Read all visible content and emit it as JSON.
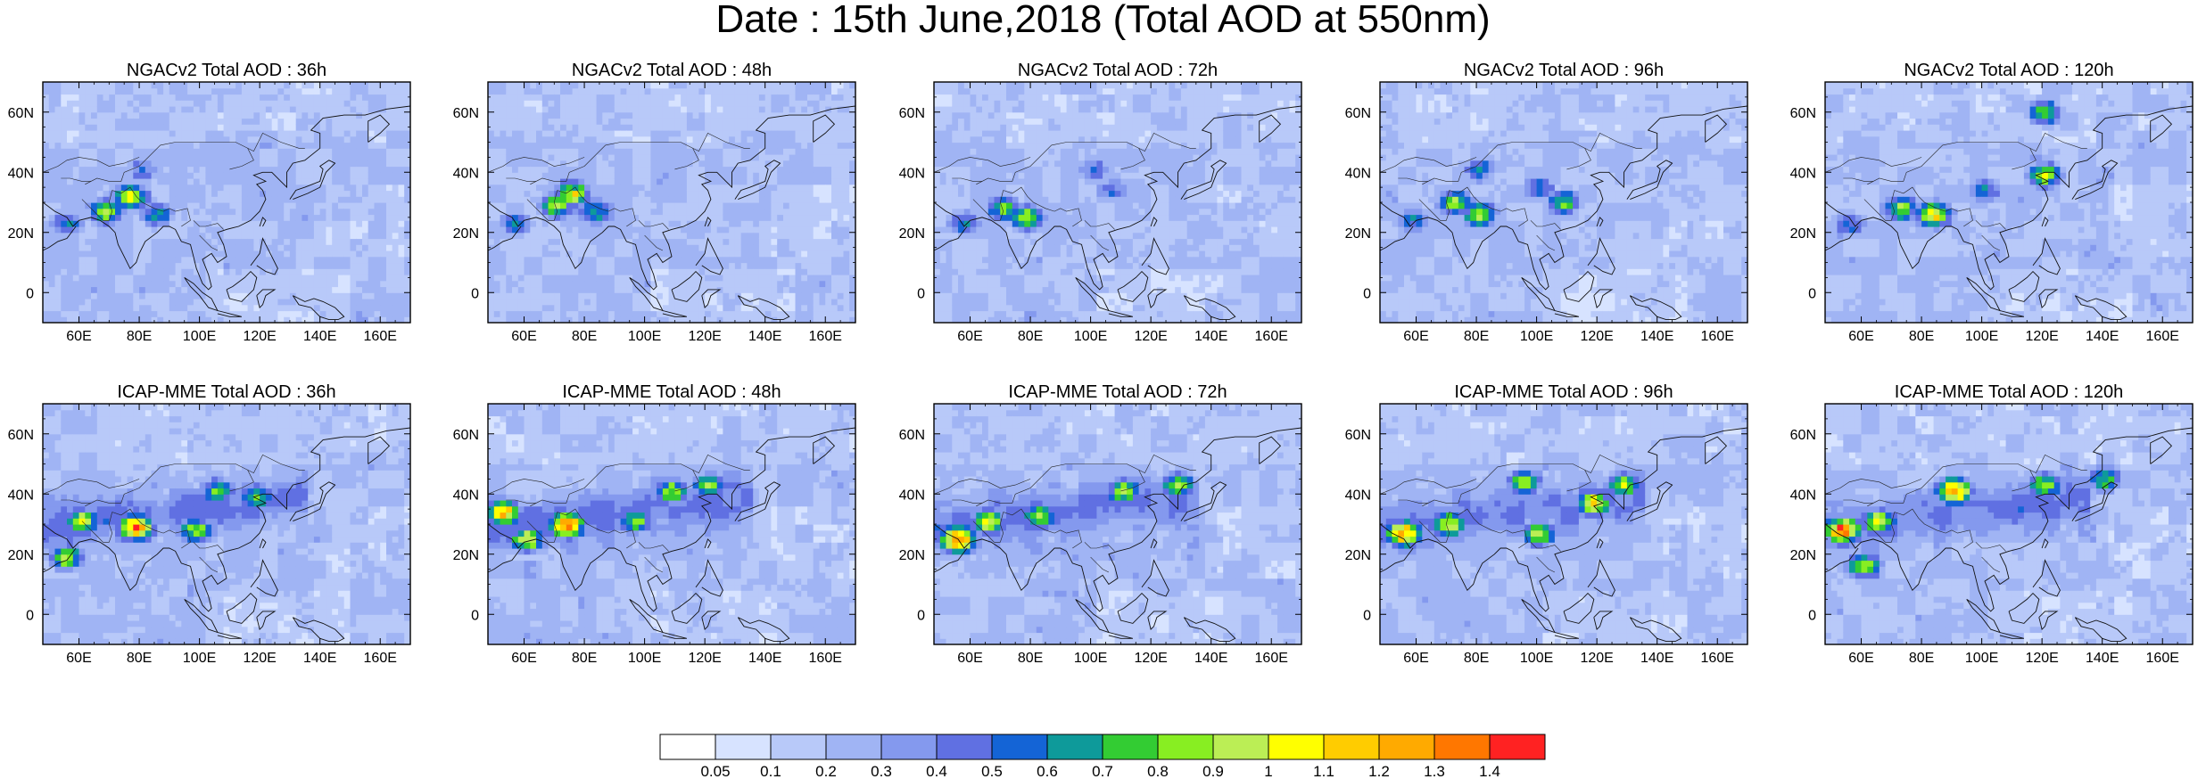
{
  "title": "Date : 15th June,2018 (Total AOD at 550nm)",
  "chart_data": {
    "type": "heatmap",
    "title": "Date : 15th June,2018 (Total AOD at 550nm)",
    "xlim": [
      48,
      170
    ],
    "ylim": [
      -10,
      70
    ],
    "x_ticks": [
      60,
      80,
      100,
      120,
      140,
      160
    ],
    "x_tick_labels": [
      "60E",
      "80E",
      "100E",
      "120E",
      "140E",
      "160E"
    ],
    "y_ticks": [
      0,
      20,
      40,
      60
    ],
    "y_tick_labels": [
      "0",
      "20N",
      "40N",
      "60N"
    ],
    "colorbar": {
      "levels": [
        "0.05",
        "0.1",
        "0.2",
        "0.3",
        "0.4",
        "0.5",
        "0.6",
        "0.7",
        "0.8",
        "0.9",
        "1",
        "1.1",
        "1.2",
        "1.3",
        "1.4"
      ],
      "colors": [
        "#ffffff",
        "#d7e3ff",
        "#b8c9f9",
        "#a0b4f4",
        "#8499ee",
        "#6070e2",
        "#1464d6",
        "#0e9a9a",
        "#33cc33",
        "#88ee22",
        "#bbee55",
        "#ffff00",
        "#ffcc00",
        "#ffaa00",
        "#ff7700",
        "#ff2222"
      ]
    },
    "panels": [
      {
        "title": "NGACv2 Total AOD : 36h",
        "model": "NGACv2",
        "hour": 36,
        "hotspots": [
          {
            "lon": 68,
            "lat": 26,
            "aod": 0.9
          },
          {
            "lon": 76,
            "lat": 31,
            "aod": 1.0
          },
          {
            "lon": 55,
            "lat": 22,
            "aod": 0.6
          },
          {
            "lon": 85,
            "lat": 25,
            "aod": 0.7
          },
          {
            "lon": 80,
            "lat": 40,
            "aod": 0.5
          }
        ]
      },
      {
        "title": "NGACv2 Total AOD : 48h",
        "model": "NGACv2",
        "hour": 48,
        "hotspots": [
          {
            "lon": 70,
            "lat": 28,
            "aod": 0.9
          },
          {
            "lon": 75,
            "lat": 32,
            "aod": 1.0
          },
          {
            "lon": 56,
            "lat": 22,
            "aod": 0.6
          },
          {
            "lon": 83,
            "lat": 26,
            "aod": 0.7
          }
        ]
      },
      {
        "title": "NGACv2 Total AOD : 72h",
        "model": "NGACv2",
        "hour": 72,
        "hotspots": [
          {
            "lon": 70,
            "lat": 27,
            "aod": 0.8
          },
          {
            "lon": 78,
            "lat": 24,
            "aod": 0.9
          },
          {
            "lon": 57,
            "lat": 22,
            "aod": 0.6
          },
          {
            "lon": 100,
            "lat": 40,
            "aod": 0.5
          },
          {
            "lon": 106,
            "lat": 33,
            "aod": 0.5
          }
        ]
      },
      {
        "title": "NGACv2 Total AOD : 96h",
        "model": "NGACv2",
        "hour": 96,
        "hotspots": [
          {
            "lon": 72,
            "lat": 29,
            "aod": 0.9
          },
          {
            "lon": 80,
            "lat": 25,
            "aod": 0.9
          },
          {
            "lon": 58,
            "lat": 23,
            "aod": 0.6
          },
          {
            "lon": 108,
            "lat": 29,
            "aod": 0.8
          },
          {
            "lon": 100,
            "lat": 34,
            "aod": 0.6
          },
          {
            "lon": 80,
            "lat": 40,
            "aod": 0.6
          }
        ]
      },
      {
        "title": "NGACv2 Total AOD : 120h",
        "model": "NGACv2",
        "hour": 120,
        "hotspots": [
          {
            "lon": 72,
            "lat": 27,
            "aod": 0.9
          },
          {
            "lon": 83,
            "lat": 25,
            "aod": 1.1
          },
          {
            "lon": 55,
            "lat": 22,
            "aod": 0.6
          },
          {
            "lon": 100,
            "lat": 33,
            "aod": 0.6
          },
          {
            "lon": 120,
            "lat": 38,
            "aod": 0.9
          },
          {
            "lon": 120,
            "lat": 59,
            "aod": 0.8
          }
        ]
      },
      {
        "title": "ICAP-MME Total AOD : 36h",
        "model": "ICAP-MME",
        "hour": 36,
        "hotspots": [
          {
            "lon": 78,
            "lat": 28,
            "aod": 1.4
          },
          {
            "lon": 60,
            "lat": 30,
            "aod": 1.0
          },
          {
            "lon": 55,
            "lat": 18,
            "aod": 0.9
          },
          {
            "lon": 105,
            "lat": 40,
            "aod": 0.8
          },
          {
            "lon": 118,
            "lat": 38,
            "aod": 0.8
          },
          {
            "lon": 98,
            "lat": 27,
            "aod": 0.9
          }
        ]
      },
      {
        "title": "ICAP-MME Total AOD : 48h",
        "model": "ICAP-MME",
        "hour": 48,
        "hotspots": [
          {
            "lon": 73,
            "lat": 29,
            "aod": 1.4
          },
          {
            "lon": 60,
            "lat": 24,
            "aod": 1.0
          },
          {
            "lon": 52,
            "lat": 33,
            "aod": 1.2
          },
          {
            "lon": 108,
            "lat": 40,
            "aod": 0.9
          },
          {
            "lon": 120,
            "lat": 42,
            "aod": 0.8
          },
          {
            "lon": 96,
            "lat": 30,
            "aod": 0.8
          }
        ]
      },
      {
        "title": "ICAP-MME Total AOD : 72h",
        "model": "ICAP-MME",
        "hour": 72,
        "hotspots": [
          {
            "lon": 55,
            "lat": 24,
            "aod": 1.4
          },
          {
            "lon": 65,
            "lat": 30,
            "aod": 1.0
          },
          {
            "lon": 82,
            "lat": 32,
            "aod": 0.9
          },
          {
            "lon": 110,
            "lat": 40,
            "aod": 0.9
          },
          {
            "lon": 128,
            "lat": 42,
            "aod": 0.9
          }
        ]
      },
      {
        "title": "ICAP-MME Total AOD : 96h",
        "model": "ICAP-MME",
        "hour": 96,
        "hotspots": [
          {
            "lon": 55,
            "lat": 26,
            "aod": 1.3
          },
          {
            "lon": 70,
            "lat": 29,
            "aod": 1.0
          },
          {
            "lon": 95,
            "lat": 43,
            "aod": 0.9
          },
          {
            "lon": 118,
            "lat": 36,
            "aod": 1.1
          },
          {
            "lon": 128,
            "lat": 42,
            "aod": 0.9
          },
          {
            "lon": 100,
            "lat": 26,
            "aod": 0.9
          }
        ]
      },
      {
        "title": "ICAP-MME Total AOD : 120h",
        "model": "ICAP-MME",
        "hour": 120,
        "hotspots": [
          {
            "lon": 53,
            "lat": 27,
            "aod": 1.4
          },
          {
            "lon": 65,
            "lat": 30,
            "aod": 1.0
          },
          {
            "lon": 90,
            "lat": 40,
            "aod": 1.3
          },
          {
            "lon": 120,
            "lat": 42,
            "aod": 0.9
          },
          {
            "lon": 140,
            "lat": 44,
            "aod": 0.8
          },
          {
            "lon": 60,
            "lat": 15,
            "aod": 0.9
          }
        ]
      }
    ]
  }
}
